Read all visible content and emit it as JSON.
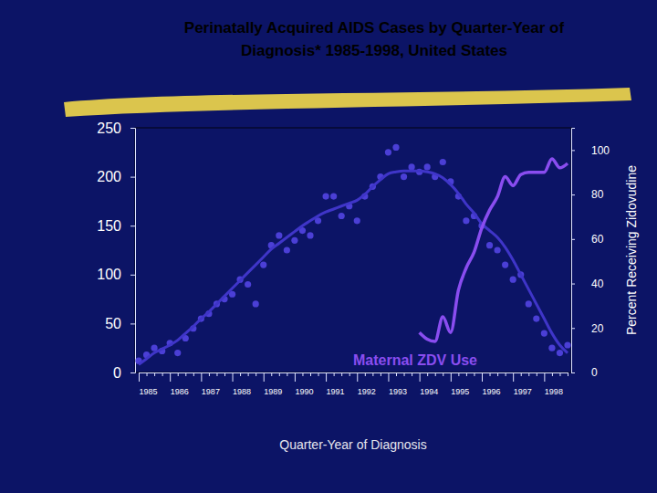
{
  "chart_data": {
    "type": "line",
    "title": "Perinatally Acquired AIDS Cases by Quarter-Year of Diagnosis* 1985-1998, United States",
    "x_label": "Quarter-Year of Diagnosis",
    "y2_label": "Percent Receiving Zidovudine",
    "categories": [
      "1985",
      null,
      null,
      null,
      "1986",
      null,
      null,
      null,
      "1987",
      null,
      null,
      null,
      "1988",
      null,
      null,
      null,
      "1989",
      null,
      null,
      null,
      "1990",
      null,
      null,
      null,
      "1991",
      null,
      null,
      null,
      "1992",
      null,
      null,
      null,
      "1993",
      null,
      null,
      null,
      "1994",
      null,
      null,
      null,
      "1995",
      null,
      null,
      null,
      "1996",
      null,
      null,
      null,
      "1997",
      null,
      null,
      null,
      "1998",
      null,
      null,
      null
    ],
    "ylim": [
      0,
      250
    ],
    "yticks": [
      0,
      50,
      100,
      150,
      200,
      250
    ],
    "y2lim": [
      0,
      110
    ],
    "y2ticks": [
      0,
      20,
      40,
      60,
      80,
      100
    ],
    "grid": false,
    "series": [
      {
        "type": "scatter",
        "marker": "circle",
        "color": "#4b3fd6",
        "values": [
          12,
          18,
          25,
          22,
          30,
          20,
          35,
          45,
          55,
          60,
          70,
          75,
          80,
          95,
          90,
          70,
          110,
          130,
          140,
          125,
          135,
          145,
          140,
          155,
          180,
          180,
          160,
          170,
          155,
          180,
          190,
          200,
          225,
          230,
          200,
          210,
          205,
          210,
          200,
          215,
          195,
          180,
          155,
          160,
          150,
          130,
          125,
          110,
          95,
          100,
          70,
          55,
          40,
          25,
          20,
          28
        ]
      },
      {
        "type": "line",
        "line_style": "solid",
        "color": "#3f35c8",
        "values": [
          8,
          14,
          20,
          24,
          28,
          33,
          40,
          47,
          55,
          62,
          70,
          78,
          86,
          94,
          102,
          110,
          118,
          126,
          132,
          138,
          144,
          150,
          155,
          160,
          164,
          167,
          170,
          173,
          176,
          182,
          190,
          197,
          203,
          205,
          206,
          206,
          206,
          205,
          203,
          199,
          192,
          183,
          172,
          163,
          152,
          145,
          138,
          128,
          115,
          100,
          85,
          70,
          55,
          40,
          28,
          20
        ]
      },
      {
        "name": "Maternal ZDV Use",
        "type": "line",
        "line_style": "solid",
        "color": "#8a4df0",
        "axis": "y2",
        "values": [
          null,
          null,
          null,
          null,
          null,
          null,
          null,
          null,
          null,
          null,
          null,
          null,
          null,
          null,
          null,
          null,
          null,
          null,
          null,
          null,
          null,
          null,
          null,
          null,
          null,
          null,
          null,
          null,
          null,
          null,
          null,
          null,
          null,
          null,
          null,
          null,
          18,
          15,
          14,
          25,
          18,
          37,
          47,
          54,
          65,
          73,
          79,
          88,
          84,
          89,
          90,
          90,
          90,
          96,
          92,
          94
        ]
      }
    ]
  }
}
